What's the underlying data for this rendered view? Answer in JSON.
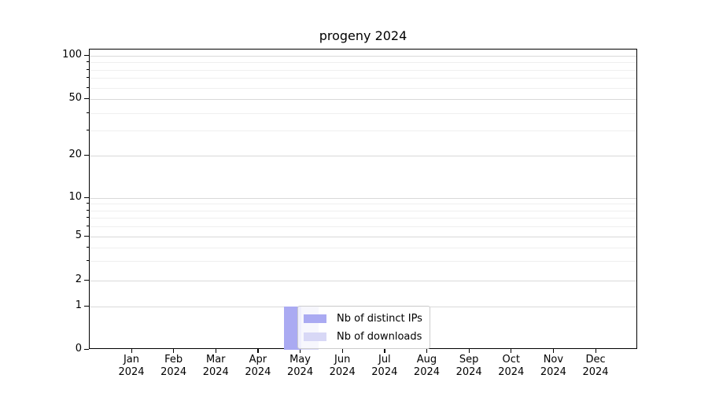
{
  "chart_data": {
    "type": "bar",
    "title": "progeny 2024",
    "categories": [
      "Jan",
      "Feb",
      "Mar",
      "Apr",
      "May",
      "Jun",
      "Jul",
      "Aug",
      "Sep",
      "Oct",
      "Nov",
      "Dec"
    ],
    "category_year": "2024",
    "series": [
      {
        "name": "Nb of distinct IPs",
        "color": "#aaaaf2",
        "values": [
          0,
          0,
          0,
          0,
          1,
          0,
          0,
          0,
          0,
          0,
          0,
          0
        ]
      },
      {
        "name": "Nb of downloads",
        "color": "#d8d8f6",
        "values": [
          0,
          0,
          0,
          0,
          1,
          0,
          0,
          0,
          0,
          0,
          0,
          0
        ]
      }
    ],
    "yscale": "symlog",
    "ylabel": "",
    "xlabel": "",
    "y_major_ticks": [
      0,
      1,
      2,
      5,
      10,
      20,
      50,
      100
    ],
    "y_minor_ticks": [
      3,
      4,
      6,
      7,
      8,
      9,
      30,
      40,
      60,
      70,
      80,
      90
    ],
    "ylim": [
      0,
      110
    ],
    "grid": "horizontal",
    "legend": {
      "position": "inside-lower-center",
      "background": "#ffffff",
      "border_color": "#cccccc"
    },
    "colors": {
      "axis": "#000000",
      "grid_major": "#d9d9d9",
      "grid_minor": "#efefef",
      "text": "#000000"
    }
  }
}
